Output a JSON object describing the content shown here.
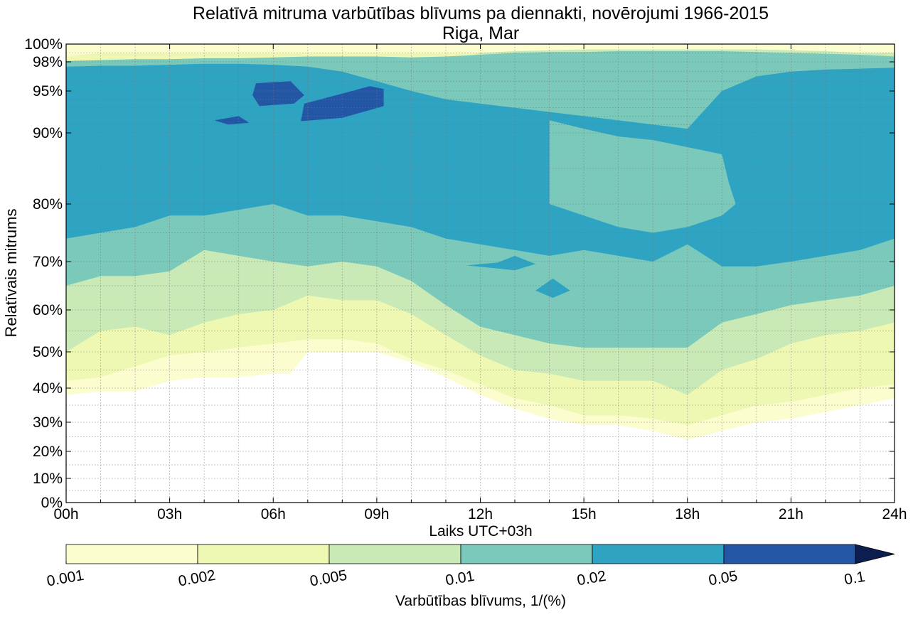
{
  "chart_data": {
    "type": "heatmap",
    "subtype": "filled-contour",
    "title": "Relatīvā mitruma varbūtības blīvums pa diennakti, novērojumi 1966-2015",
    "subtitle": "Riga, Mar",
    "xlabel": "Laiks UTC+03h",
    "ylabel": "Relatīvais mitrums",
    "xlim": [
      0,
      24
    ],
    "ylim": [
      0,
      100
    ],
    "y_scale": "transformed (expanded near 100%)",
    "x_ticks": [
      {
        "value": 0,
        "label": "00h"
      },
      {
        "value": 3,
        "label": "03h"
      },
      {
        "value": 6,
        "label": "06h"
      },
      {
        "value": 9,
        "label": "09h"
      },
      {
        "value": 12,
        "label": "12h"
      },
      {
        "value": 15,
        "label": "15h"
      },
      {
        "value": 18,
        "label": "18h"
      },
      {
        "value": 21,
        "label": "21h"
      },
      {
        "value": 24,
        "label": "24h"
      }
    ],
    "y_ticks": [
      {
        "value": 0,
        "label": "0%"
      },
      {
        "value": 10,
        "label": "10%"
      },
      {
        "value": 20,
        "label": "20%"
      },
      {
        "value": 30,
        "label": "30%"
      },
      {
        "value": 40,
        "label": "40%"
      },
      {
        "value": 50,
        "label": "50%"
      },
      {
        "value": 60,
        "label": "60%"
      },
      {
        "value": 70,
        "label": "70%"
      },
      {
        "value": 80,
        "label": "80%"
      },
      {
        "value": 90,
        "label": "90%"
      },
      {
        "value": 95,
        "label": "95%"
      },
      {
        "value": 98,
        "label": "98%"
      },
      {
        "value": 100,
        "label": "100%"
      }
    ],
    "grid": true,
    "colorbar": {
      "label": "Varbūtības blīvums, 1/(%)",
      "extend": "max",
      "levels": [
        {
          "label": "0.001",
          "color": "#ffffcc"
        },
        {
          "label": "0.002",
          "color": "#edf8b1"
        },
        {
          "label": "0.005",
          "color": "#c7e9b4"
        },
        {
          "label": "0.01",
          "color": "#7fcdbb"
        },
        {
          "label": "0.02",
          "color": "#41b6c4"
        },
        {
          "label": "0.05",
          "color": "#2c7fb8"
        },
        {
          "label": "0.1",
          "color": "#253494"
        }
      ],
      "band_colors": [
        "#fbfdcf",
        "#eef8b3",
        "#c9eab6",
        "#7bc9ba",
        "#2ea3c2",
        "#2357a6"
      ],
      "over_color": "#0c1d4f"
    },
    "contours": [
      {
        "level": "0.001",
        "color": "#fbfdcf",
        "x": [
          0,
          1,
          2,
          3,
          4,
          5,
          6,
          6.5,
          7,
          8,
          9,
          10,
          11,
          12,
          13,
          14,
          15,
          16,
          17,
          18,
          19,
          20,
          21,
          22,
          23,
          24
        ],
        "lower": [
          38,
          39,
          39,
          42,
          43,
          43,
          44,
          44,
          50,
          50,
          50,
          47,
          43,
          38,
          34,
          31,
          29,
          29,
          27,
          24,
          27,
          30,
          31,
          33,
          35,
          37
        ],
        "upper": [
          100,
          100,
          100,
          100,
          100,
          100,
          100,
          100,
          100,
          100,
          100,
          100,
          100,
          100,
          100,
          100,
          100,
          100,
          100,
          100,
          100,
          100,
          100,
          100,
          100,
          100
        ]
      },
      {
        "level": "0.002",
        "color": "#eef8b3",
        "x": [
          0,
          1,
          2,
          3,
          4,
          5,
          6,
          7,
          8,
          9,
          10,
          11,
          12,
          13,
          14,
          15,
          16,
          17,
          18,
          19,
          20,
          21,
          22,
          23,
          24
        ],
        "lower": [
          42,
          43,
          46,
          49,
          50,
          51,
          52,
          53,
          53,
          52,
          48,
          45,
          41,
          37,
          35,
          32,
          32,
          31,
          29,
          32,
          35,
          36,
          38,
          40,
          41
        ],
        "upper": [
          98.6,
          99,
          99,
          99,
          99,
          99,
          99,
          99,
          99,
          99,
          99,
          99,
          99,
          99,
          99,
          99,
          99,
          99,
          99,
          99,
          99,
          99,
          99,
          99,
          99
        ]
      },
      {
        "level": "0.005",
        "color": "#c9eab6",
        "x": [
          0,
          1,
          2,
          3,
          4,
          5,
          6,
          7,
          8,
          9,
          10,
          11,
          12,
          13,
          14,
          15,
          16,
          17,
          18,
          19,
          20,
          21,
          22,
          23,
          24
        ],
        "lower": [
          50,
          55,
          56,
          54,
          57,
          59,
          60,
          63,
          62,
          62,
          59,
          54,
          49,
          45,
          44,
          42,
          42,
          42,
          38,
          45,
          48,
          52,
          54,
          55,
          57
        ],
        "upper": [
          98,
          98,
          98,
          98,
          98,
          98,
          98,
          98,
          98,
          98,
          98,
          98,
          99,
          99.2,
          99.3,
          99.4,
          99.4,
          99.4,
          99.4,
          99.4,
          99.4,
          99.3,
          99.2,
          99,
          99
        ]
      },
      {
        "level": "0.01",
        "color": "#7bc9ba",
        "x": [
          0,
          1,
          2,
          3,
          4,
          5,
          6,
          7,
          8,
          9,
          10,
          11,
          12,
          13,
          14,
          15,
          16,
          17,
          18,
          19,
          20,
          21,
          22,
          23,
          24
        ],
        "lower": [
          65,
          67,
          67,
          68,
          72,
          71,
          70,
          69,
          70,
          69,
          66,
          61,
          56,
          54,
          52,
          51,
          51,
          51,
          51,
          57,
          59,
          61,
          62,
          63,
          65
        ],
        "upper": [
          98.1,
          98.2,
          98.3,
          98.3,
          98.4,
          98.4,
          98.5,
          98.6,
          98.6,
          98.6,
          98.5,
          98.6,
          98.8,
          99,
          99.1,
          99.1,
          99.2,
          99.2,
          99.2,
          99.2,
          99.1,
          99,
          98.9,
          98.8,
          98.6
        ]
      },
      {
        "level": "0.02",
        "color": "#2ea3c2",
        "x": [
          0,
          1,
          2,
          3,
          4,
          5,
          6,
          7,
          8,
          9,
          10,
          11,
          12,
          13,
          14,
          15,
          16,
          17,
          18,
          19,
          20,
          21,
          22,
          23,
          24
        ],
        "lower": [
          74,
          75,
          76,
          78,
          78,
          79,
          80,
          78,
          78,
          77,
          76,
          74,
          73,
          72,
          71,
          72,
          71,
          70,
          73,
          69,
          69,
          70,
          71,
          72,
          74
        ],
        "upper": [
          97.5,
          97.6,
          97.6,
          97.7,
          97.8,
          97.8,
          97.7,
          97.5,
          97,
          96,
          95,
          94,
          93.5,
          93,
          92.5,
          92,
          91.5,
          91,
          90.5,
          95,
          96.5,
          97,
          97.2,
          97.3,
          97.4
        ]
      }
    ],
    "islands": [
      {
        "level": "0.01",
        "color": "#7bc9ba",
        "description": "region centered near 16h, 82%",
        "points": [
          [
            14,
            91.5
          ],
          [
            15,
            90.5
          ],
          [
            16,
            89.5
          ],
          [
            17,
            89
          ],
          [
            18,
            88
          ],
          [
            19,
            87
          ],
          [
            19.2,
            83
          ],
          [
            19.4,
            80
          ],
          [
            19,
            78
          ],
          [
            18,
            76
          ],
          [
            17,
            75
          ],
          [
            16,
            76
          ],
          [
            15,
            78
          ],
          [
            14,
            80
          ],
          [
            14,
            85
          ],
          [
            14,
            89
          ]
        ]
      },
      {
        "level": "0.02",
        "color": "#2ea3c2",
        "description": "small patch near 13h, 70%",
        "points": [
          [
            11.6,
            69.2
          ],
          [
            12.5,
            69.8
          ],
          [
            13,
            71
          ],
          [
            13.6,
            69.5
          ],
          [
            13,
            68.2
          ],
          [
            12.2,
            68.8
          ]
        ]
      },
      {
        "level": "0.02",
        "color": "#2ea3c2",
        "description": "small patch near 14h, 65%",
        "points": [
          [
            13.6,
            64
          ],
          [
            14.1,
            66.5
          ],
          [
            14.6,
            64
          ],
          [
            14.1,
            62.5
          ]
        ]
      },
      {
        "level": "0.05",
        "color": "#2357a6",
        "description": "patch near 5.5h, 94.5%",
        "points": [
          [
            5.5,
            95.8
          ],
          [
            6.5,
            96.0
          ],
          [
            6.9,
            94.5
          ],
          [
            6.6,
            93.5
          ],
          [
            5.6,
            93.2
          ],
          [
            5.4,
            94.5
          ]
        ]
      },
      {
        "level": "0.05",
        "color": "#2357a6",
        "description": "patch near 8.5h, 93.5%",
        "points": [
          [
            6.9,
            93.5
          ],
          [
            8.1,
            94.8
          ],
          [
            8.8,
            95.5
          ],
          [
            9.2,
            95.2
          ],
          [
            9.2,
            93.2
          ],
          [
            8.0,
            91.8
          ],
          [
            6.8,
            91.4
          ]
        ]
      },
      {
        "level": "0.05",
        "color": "#2357a6",
        "description": "small patch near 4.8h, 91.5%",
        "points": [
          [
            4.3,
            91.5
          ],
          [
            5.0,
            92
          ],
          [
            5.3,
            91.2
          ],
          [
            4.7,
            91.0
          ]
        ]
      }
    ]
  }
}
